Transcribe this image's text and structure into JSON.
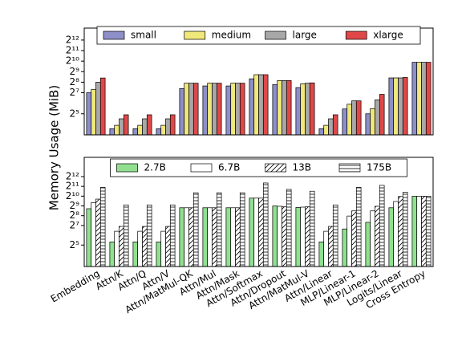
{
  "chart_data": [
    {
      "type": "bar",
      "ylabel": "Memory Usage (MiB)",
      "yscale": "log",
      "legend": "upper center",
      "ylim": [
        8,
        9000
      ],
      "yticks": [
        {
          "value": 32,
          "label": "2⁵"
        },
        {
          "value": 128,
          "label": "2⁷"
        },
        {
          "value": 256,
          "label": "2⁸"
        },
        {
          "value": 512,
          "label": "2⁹"
        },
        {
          "value": 1024,
          "label": "2¹⁰"
        },
        {
          "value": 2048,
          "label": "2¹¹"
        },
        {
          "value": 4096,
          "label": "2¹²"
        }
      ],
      "series": [
        {
          "name": "small",
          "color": "#8c8fc8",
          "hatch": "",
          "values": [
            128,
            12,
            12,
            12,
            168,
            200,
            200,
            320,
            220,
            180,
            12,
            44,
            32,
            340,
            950
          ]
        },
        {
          "name": "medium",
          "color": "#f0e87a",
          "hatch": "",
          "values": [
            158,
            15,
            15,
            15,
            240,
            240,
            240,
            420,
            285,
            230,
            15,
            60,
            45,
            340,
            950
          ]
        },
        {
          "name": "large",
          "color": "#a8a8a8",
          "hatch": "",
          "values": [
            256,
            23,
            23,
            23,
            240,
            240,
            240,
            420,
            285,
            240,
            23,
            75,
            80,
            340,
            950
          ]
        },
        {
          "name": "xlarge",
          "color": "#e04848",
          "hatch": "",
          "values": [
            338,
            30,
            30,
            30,
            240,
            240,
            240,
            420,
            285,
            245,
            30,
            75,
            115,
            350,
            950
          ]
        }
      ]
    },
    {
      "type": "bar",
      "yscale": "log",
      "legend": "upper center",
      "categories": [
        "Embedding",
        "Attn/K",
        "Attn/Q",
        "Attn/V",
        "Attn/MatMul-QK",
        "Attn/Mul",
        "Attn/Mask",
        "Attn/Softmax",
        "Attn/Dropout",
        "Attn/MatMul-V",
        "Attn/Linear",
        "MLP/Linear-1",
        "MLP/Linear-2",
        "Logits/Linear",
        "Cross Entropy"
      ],
      "ylim": [
        7,
        16000
      ],
      "yticks": [
        {
          "value": 32,
          "label": "2⁵"
        },
        {
          "value": 128,
          "label": "2⁷"
        },
        {
          "value": 256,
          "label": "2⁸"
        },
        {
          "value": 512,
          "label": "2⁹"
        },
        {
          "value": 1024,
          "label": "2¹⁰"
        },
        {
          "value": 2048,
          "label": "2¹¹"
        },
        {
          "value": 4096,
          "label": "2¹²"
        }
      ],
      "series": [
        {
          "name": "2.7B",
          "color": "#90e090",
          "hatch": "",
          "values": [
            420,
            40,
            40,
            40,
            450,
            450,
            450,
            890,
            510,
            460,
            40,
            100,
            160,
            450,
            1020
          ]
        },
        {
          "name": "6.7B",
          "color": "#ffffff",
          "hatch": "",
          "values": [
            650,
            85,
            85,
            85,
            450,
            450,
            450,
            890,
            500,
            470,
            85,
            250,
            360,
            700,
            1020
          ]
        },
        {
          "name": "13B",
          "color": "#ffffff",
          "hatch": "/",
          "values": [
            830,
            120,
            120,
            120,
            450,
            450,
            450,
            890,
            480,
            480,
            120,
            360,
            500,
            1000,
            1020
          ]
        },
        {
          "name": "175B",
          "color": "#ffffff",
          "hatch": "-",
          "values": [
            1900,
            550,
            550,
            550,
            1300,
            1300,
            1300,
            2600,
            1650,
            1450,
            550,
            1900,
            2200,
            1350,
            1020
          ]
        }
      ]
    }
  ]
}
